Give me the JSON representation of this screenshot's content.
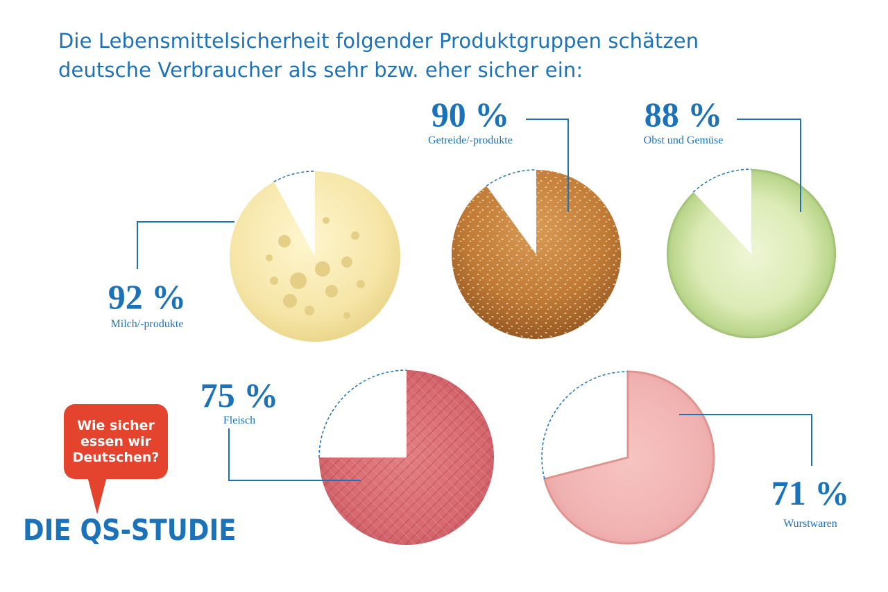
{
  "title": {
    "line1": "Die Lebensmittelsicherheit folgender Produktgruppen schätzen",
    "line2": "deutsche Verbraucher als sehr bzw. eher sicher ein:"
  },
  "colors": {
    "accent": "#1b72b8",
    "bubble": "#e4432e"
  },
  "chart_data": {
    "type": "pie",
    "unit": "%",
    "series": [
      {
        "key": "milch",
        "category": "Milch/-produkte",
        "value": 92,
        "label": "92 %",
        "image": "cheese"
      },
      {
        "key": "getreide",
        "category": "Getreide/-produkte",
        "value": 90,
        "label": "90 %",
        "image": "bread-roll"
      },
      {
        "key": "obst",
        "category": "Obst und Gemüse",
        "value": 88,
        "label": "88 %",
        "image": "cucumber-slice"
      },
      {
        "key": "fleisch",
        "category": "Fleisch",
        "value": 75,
        "label": "75 %",
        "image": "minced-meat"
      },
      {
        "key": "wurst",
        "category": "Wurstwaren",
        "value": 71,
        "label": "71 %",
        "image": "ham-sausage-slice"
      }
    ]
  },
  "badge": {
    "line1": "Wie sicher",
    "line2": "essen wir",
    "line3": "Deutschen?"
  },
  "brand": "DIE QS-STUDIE"
}
